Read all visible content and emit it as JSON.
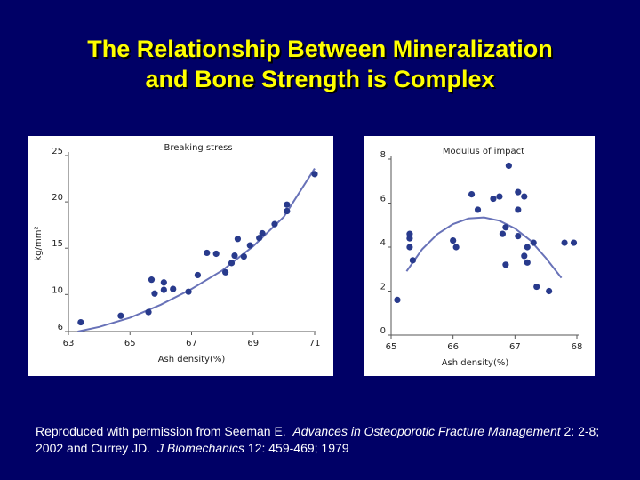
{
  "slide": {
    "title_line1": "The Relationship Between Mineralization",
    "title_line2": "and Bone Strength is Complex"
  },
  "citation": {
    "prefix": "Reproduced with permission from Seeman E.",
    "journal1": "Advances in Osteoporotic Fracture Management",
    "ref1": "2: 2-8; 2002 and Currey JD.",
    "journal2": "J Biomechanics",
    "ref2": "12: 459-469; 1979"
  },
  "chart_data": [
    {
      "type": "scatter",
      "title": "Breaking stress",
      "xlabel": "Ash density(%)",
      "ylabel": "kg/mm²",
      "xlim": [
        63,
        71
      ],
      "ylim": [
        6,
        25
      ],
      "xticks": [
        63,
        65,
        67,
        69,
        71
      ],
      "yticks": [
        6,
        10,
        15,
        20,
        25
      ],
      "points": [
        {
          "x": 63.4,
          "y": 7.0
        },
        {
          "x": 64.7,
          "y": 7.7
        },
        {
          "x": 65.6,
          "y": 8.1
        },
        {
          "x": 65.7,
          "y": 11.6
        },
        {
          "x": 65.8,
          "y": 10.1
        },
        {
          "x": 66.1,
          "y": 11.3
        },
        {
          "x": 66.1,
          "y": 10.5
        },
        {
          "x": 66.4,
          "y": 10.6
        },
        {
          "x": 66.9,
          "y": 10.3
        },
        {
          "x": 67.2,
          "y": 12.1
        },
        {
          "x": 67.5,
          "y": 14.5
        },
        {
          "x": 67.8,
          "y": 14.4
        },
        {
          "x": 68.1,
          "y": 12.4
        },
        {
          "x": 68.3,
          "y": 13.4
        },
        {
          "x": 68.4,
          "y": 14.2
        },
        {
          "x": 68.5,
          "y": 16.0
        },
        {
          "x": 68.7,
          "y": 14.1
        },
        {
          "x": 68.9,
          "y": 15.3
        },
        {
          "x": 69.2,
          "y": 16.1
        },
        {
          "x": 69.3,
          "y": 16.6
        },
        {
          "x": 69.7,
          "y": 17.6
        },
        {
          "x": 70.1,
          "y": 19.7
        },
        {
          "x": 70.1,
          "y": 19.0
        },
        {
          "x": 71.0,
          "y": 23.0
        }
      ],
      "trend": {
        "x": [
          63.3,
          64,
          65,
          66,
          67,
          68,
          69,
          70,
          71
        ],
        "y": [
          6.0,
          6.5,
          7.5,
          8.9,
          10.6,
          12.6,
          15.2,
          18.4,
          23.6
        ]
      }
    },
    {
      "type": "scatter",
      "title": "Modulus of impact",
      "xlabel": "Ash density(%)",
      "ylabel": "",
      "xlim": [
        65,
        68
      ],
      "ylim": [
        0,
        8
      ],
      "xticks": [
        65,
        66,
        67,
        68
      ],
      "yticks": [
        0,
        2,
        4,
        6,
        8
      ],
      "points": [
        {
          "x": 65.1,
          "y": 1.6
        },
        {
          "x": 65.3,
          "y": 4.6
        },
        {
          "x": 65.3,
          "y": 4.0
        },
        {
          "x": 65.3,
          "y": 4.4
        },
        {
          "x": 65.35,
          "y": 3.4
        },
        {
          "x": 66.0,
          "y": 4.3
        },
        {
          "x": 66.05,
          "y": 4.0
        },
        {
          "x": 66.3,
          "y": 6.4
        },
        {
          "x": 66.4,
          "y": 5.7
        },
        {
          "x": 66.65,
          "y": 6.2
        },
        {
          "x": 66.75,
          "y": 6.3
        },
        {
          "x": 66.8,
          "y": 4.6
        },
        {
          "x": 66.85,
          "y": 4.9
        },
        {
          "x": 66.85,
          "y": 3.2
        },
        {
          "x": 66.9,
          "y": 7.7
        },
        {
          "x": 67.05,
          "y": 6.5
        },
        {
          "x": 67.05,
          "y": 5.7
        },
        {
          "x": 67.05,
          "y": 4.5
        },
        {
          "x": 67.15,
          "y": 6.3
        },
        {
          "x": 67.15,
          "y": 3.6
        },
        {
          "x": 67.2,
          "y": 4.0
        },
        {
          "x": 67.2,
          "y": 3.3
        },
        {
          "x": 67.3,
          "y": 4.2
        },
        {
          "x": 67.35,
          "y": 2.2
        },
        {
          "x": 67.55,
          "y": 2.0
        },
        {
          "x": 67.8,
          "y": 4.2
        },
        {
          "x": 67.95,
          "y": 4.2
        }
      ],
      "trend": {
        "x": [
          65.25,
          65.5,
          65.75,
          66.0,
          66.25,
          66.5,
          66.75,
          67.0,
          67.25,
          67.5,
          67.75
        ],
        "y": [
          2.9,
          3.9,
          4.6,
          5.05,
          5.3,
          5.35,
          5.2,
          4.85,
          4.3,
          3.5,
          2.6
        ]
      }
    }
  ]
}
